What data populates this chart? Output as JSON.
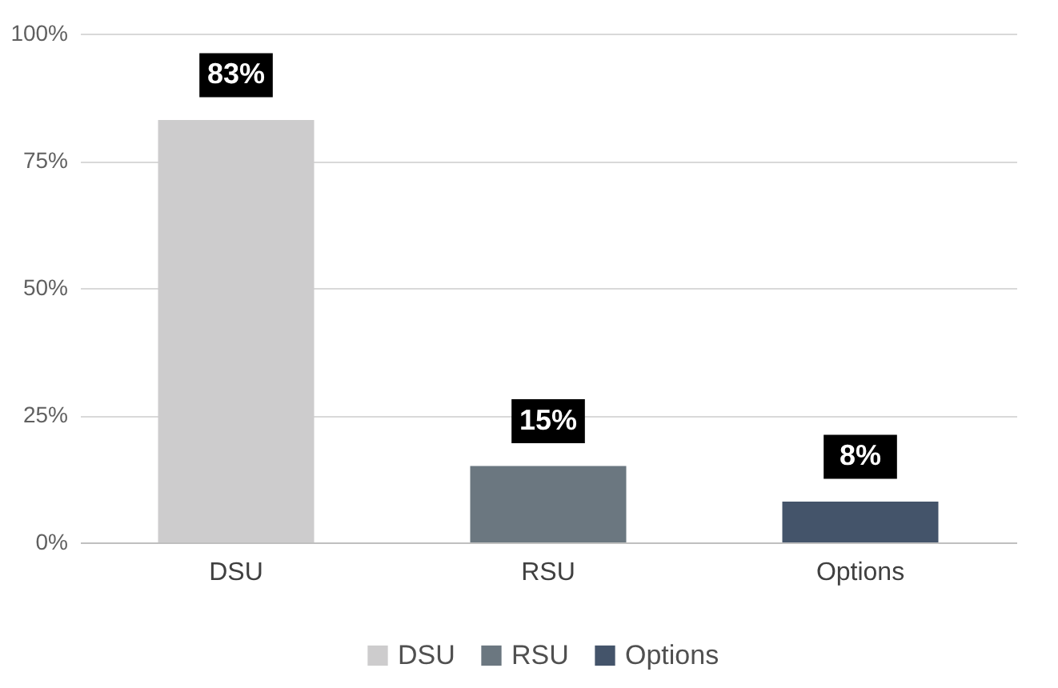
{
  "chart_data": {
    "type": "bar",
    "categories": [
      "DSU",
      "RSU",
      "Options"
    ],
    "stacked": true,
    "series": [
      {
        "name": "DSU",
        "color": "#cdcccd",
        "values": [
          83,
          null,
          null
        ],
        "value_labels": [
          "83%",
          null,
          null
        ]
      },
      {
        "name": "RSU",
        "color": "#6b7780",
        "values": [
          null,
          15,
          null
        ],
        "value_labels": [
          null,
          "15%",
          null
        ]
      },
      {
        "name": "Options",
        "color": "#44546a",
        "values": [
          null,
          null,
          8
        ],
        "value_labels": [
          null,
          null,
          "8%"
        ]
      }
    ],
    "ylim": [
      0,
      100
    ],
    "yticks": [
      {
        "value": 0,
        "label": "0%"
      },
      {
        "value": 25,
        "label": "25%"
      },
      {
        "value": 50,
        "label": "50%"
      },
      {
        "value": 75,
        "label": "75%"
      },
      {
        "value": 100,
        "label": "100%"
      }
    ],
    "grid": "y",
    "legend": "bottom"
  }
}
